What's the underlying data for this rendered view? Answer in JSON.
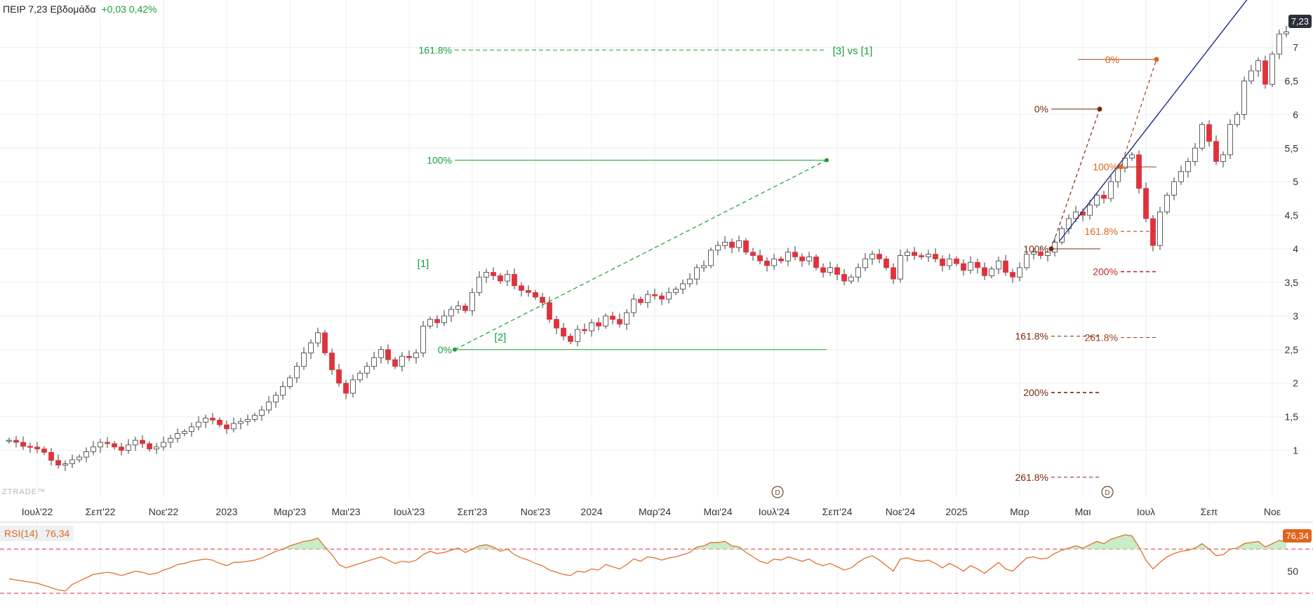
{
  "header": {
    "symbol_text": "ΠΕΙΡ 7,23 Εβδομάδα",
    "change_text": "+0,03 0,42%"
  },
  "price_badge": "7,23",
  "rsi": {
    "label": "RSI(14)",
    "value": "76,34",
    "badge": "76,34",
    "axis_label": "50"
  },
  "watermark": "ZTRADE™",
  "colors": {
    "up_candle": "#ffffff",
    "down_candle": "#e0323c",
    "candle_outline": "#3a3a3a",
    "fib_green": "#1a9e3a",
    "fib_brown": "#a0401c",
    "fib_dark": "#7a2a10",
    "trendline": "#1b2a8a",
    "rsi_line": "#e0651c",
    "rsi_fill": "#c9ecc9",
    "rsi_level": "#e0323c"
  },
  "chart_data": {
    "type": "candlestick",
    "title": "ΠΕΙΡ Εβδομάδα",
    "ylim": [
      0.4,
      7.6
    ],
    "y_ticks": [
      "1",
      "1,5",
      "2",
      "2,5",
      "3",
      "3,5",
      "4",
      "4,5",
      "5",
      "5,5",
      "6",
      "6,5",
      "7"
    ],
    "y_tick_values": [
      1,
      1.5,
      2,
      2.5,
      3,
      3.5,
      4,
      4.5,
      5,
      5.5,
      6,
      6.5,
      7
    ],
    "x_ticks": [
      "Ιουλ'22",
      "Σεπ'22",
      "Νοε'22",
      "2023",
      "Μαρ'23",
      "Μαι'23",
      "Ιουλ'23",
      "Σεπ'23",
      "Νοε'23",
      "2024",
      "Μαρ'24",
      "Μαι'24",
      "Ιουλ'24",
      "Σεπ'24",
      "Νοε'24",
      "2025",
      "Μαρ",
      "Μαι",
      "Ιουλ",
      "Σεπ",
      "Νοε"
    ],
    "x_tick_weeks": [
      4,
      13,
      22,
      31,
      40,
      48,
      57,
      66,
      75,
      83,
      92,
      101,
      109,
      118,
      127,
      135,
      144,
      153,
      162,
      171,
      180
    ],
    "closes": [
      1.15,
      1.12,
      1.06,
      1.05,
      1.02,
      0.97,
      0.85,
      0.78,
      0.8,
      0.86,
      0.9,
      0.98,
      1.05,
      1.12,
      1.1,
      1.05,
      1.0,
      1.08,
      1.15,
      1.1,
      1.02,
      1.05,
      1.12,
      1.18,
      1.25,
      1.28,
      1.35,
      1.42,
      1.48,
      1.45,
      1.38,
      1.32,
      1.4,
      1.43,
      1.46,
      1.52,
      1.6,
      1.72,
      1.82,
      1.95,
      2.08,
      2.25,
      2.45,
      2.6,
      2.75,
      2.45,
      2.2,
      2.0,
      1.85,
      2.05,
      2.15,
      2.25,
      2.38,
      2.5,
      2.35,
      2.25,
      2.4,
      2.38,
      2.45,
      2.85,
      2.95,
      2.9,
      3.0,
      3.1,
      3.15,
      3.08,
      3.35,
      3.58,
      3.65,
      3.6,
      3.52,
      3.62,
      3.45,
      3.38,
      3.35,
      3.28,
      3.2,
      2.95,
      2.82,
      2.7,
      2.62,
      2.8,
      2.78,
      2.9,
      2.85,
      3.0,
      2.95,
      2.88,
      3.05,
      3.25,
      3.2,
      3.32,
      3.3,
      3.25,
      3.35,
      3.4,
      3.48,
      3.55,
      3.72,
      3.75,
      3.98,
      4.05,
      4.1,
      4.02,
      4.12,
      3.95,
      3.9,
      3.82,
      3.75,
      3.85,
      3.82,
      3.95,
      3.88,
      3.82,
      3.88,
      3.72,
      3.65,
      3.72,
      3.62,
      3.52,
      3.58,
      3.72,
      3.85,
      3.92,
      3.85,
      3.72,
      3.55,
      3.9,
      3.95,
      3.9,
      3.88,
      3.92,
      3.85,
      3.75,
      3.85,
      3.78,
      3.68,
      3.8,
      3.72,
      3.6,
      3.7,
      3.82,
      3.65,
      3.58,
      3.72,
      3.92,
      3.95,
      3.9,
      3.95,
      4.1,
      4.3,
      4.45,
      4.55,
      4.5,
      4.65,
      4.8,
      4.75,
      5.0,
      5.2,
      5.35,
      5.4,
      4.9,
      4.45,
      4.05,
      4.55,
      4.8,
      5.0,
      5.15,
      5.3,
      5.5,
      5.85,
      5.6,
      5.3,
      5.4,
      5.85,
      6.0,
      6.5,
      6.65,
      6.8,
      6.45,
      6.9,
      7.2,
      7.23
    ],
    "rsi_values": [
      43,
      42,
      41,
      40,
      39,
      37,
      35,
      33,
      32,
      38,
      41,
      44,
      47,
      48,
      49,
      48,
      46,
      48,
      50,
      49,
      47,
      48,
      51,
      53,
      56,
      57,
      59,
      60,
      61,
      60,
      57,
      55,
      58,
      58,
      59,
      60,
      62,
      65,
      68,
      70,
      73,
      75,
      77,
      78,
      80,
      72,
      65,
      56,
      53,
      55,
      57,
      59,
      61,
      63,
      60,
      57,
      59,
      58,
      60,
      65,
      68,
      66,
      67,
      69,
      71,
      67,
      70,
      73,
      74,
      72,
      68,
      70,
      65,
      62,
      60,
      57,
      55,
      51,
      49,
      47,
      46,
      50,
      49,
      52,
      51,
      56,
      54,
      52,
      56,
      61,
      59,
      63,
      62,
      60,
      62,
      63,
      65,
      67,
      72,
      73,
      76,
      76,
      77,
      73,
      72,
      67,
      63,
      59,
      57,
      61,
      60,
      63,
      61,
      59,
      61,
      57,
      55,
      57,
      54,
      51,
      53,
      58,
      62,
      64,
      60,
      55,
      50,
      61,
      62,
      60,
      59,
      60,
      57,
      53,
      57,
      54,
      50,
      55,
      52,
      48,
      53,
      58,
      52,
      50,
      56,
      62,
      63,
      61,
      62,
      66,
      69,
      71,
      73,
      71,
      74,
      77,
      75,
      79,
      81,
      83,
      82,
      72,
      60,
      52,
      58,
      63,
      66,
      68,
      69,
      71,
      75,
      70,
      64,
      65,
      70,
      71,
      75,
      76,
      77,
      72,
      75,
      78,
      76.34
    ],
    "rsi_levels": [
      30,
      70
    ],
    "annotations": {
      "green_fib": {
        "labels": [
          "161.8%",
          "100%",
          "0%"
        ],
        "values": [
          6.96,
          5.32,
          2.5
        ],
        "tag": "[3] vs [1]",
        "wave_labels": [
          "[1]",
          "[2]"
        ]
      },
      "brown_fib_upper": {
        "labels": [
          "0%",
          "100%",
          "161.8%",
          "200%",
          "261.8%"
        ],
        "values": [
          6.82,
          5.22,
          4.26,
          3.66,
          2.68
        ]
      },
      "brown_fib_lower": {
        "labels": [
          "0%",
          "100%",
          "161.8%",
          "200%",
          "261.8%"
        ],
        "values": [
          6.08,
          4.0,
          2.7,
          1.86,
          0.6
        ]
      },
      "event_markers": [
        "D",
        "D"
      ]
    }
  }
}
